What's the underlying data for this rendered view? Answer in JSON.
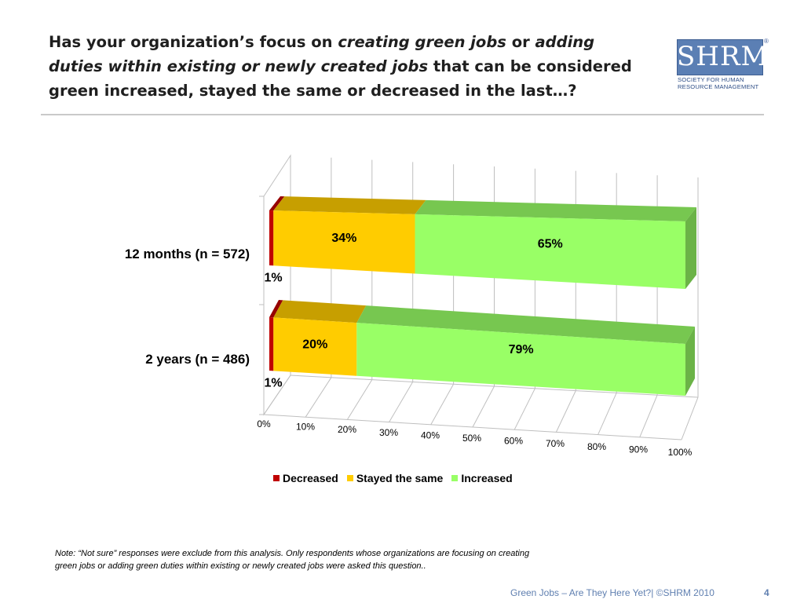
{
  "slide": {
    "title_parts": [
      {
        "text": "Has your organization’s focus on ",
        "style": "normal"
      },
      {
        "text": "creating green jobs",
        "style": "italic"
      },
      {
        "text": " or ",
        "style": "normal"
      },
      {
        "text": "adding duties within existing or newly created jobs",
        "style": "italic"
      },
      {
        "text": " that can be considered green increased, stayed the same or decreased in the last…?",
        "style": "normal"
      }
    ],
    "logo_text": "SHRM",
    "logo_subtitle": "Society for Human Resource Management",
    "note": "Note: “Not sure” responses were exclude from this analysis. Only respondents whose organizations are focusing on creating green jobs or adding green duties within existing or newly created jobs were asked this question..",
    "footer": "Green Jobs – Are They Here Yet?| ©SHRM 2010",
    "page_number": "4"
  },
  "chart_data": {
    "type": "bar",
    "orientation": "horizontal",
    "stacked": "100%",
    "style": "3d",
    "categories": [
      "12 months (n = 572)",
      "2 years (n = 486)"
    ],
    "series": [
      {
        "name": "Decreased",
        "color": "#c00000",
        "values": [
          1,
          1
        ],
        "labels": [
          "1%",
          "1%"
        ]
      },
      {
        "name": "Stayed the same",
        "color": "#ffcc00",
        "values": [
          34,
          20
        ],
        "labels": [
          "34%",
          "20%"
        ]
      },
      {
        "name": "Increased",
        "color": "#99ff66",
        "values": [
          65,
          79
        ],
        "labels": [
          "65%",
          "79%"
        ]
      }
    ],
    "xlim": [
      0,
      100
    ],
    "x_ticks": [
      "0%",
      "10%",
      "20%",
      "30%",
      "40%",
      "50%",
      "60%",
      "70%",
      "80%",
      "90%",
      "100%"
    ],
    "grid": true,
    "legend_position": "bottom"
  }
}
